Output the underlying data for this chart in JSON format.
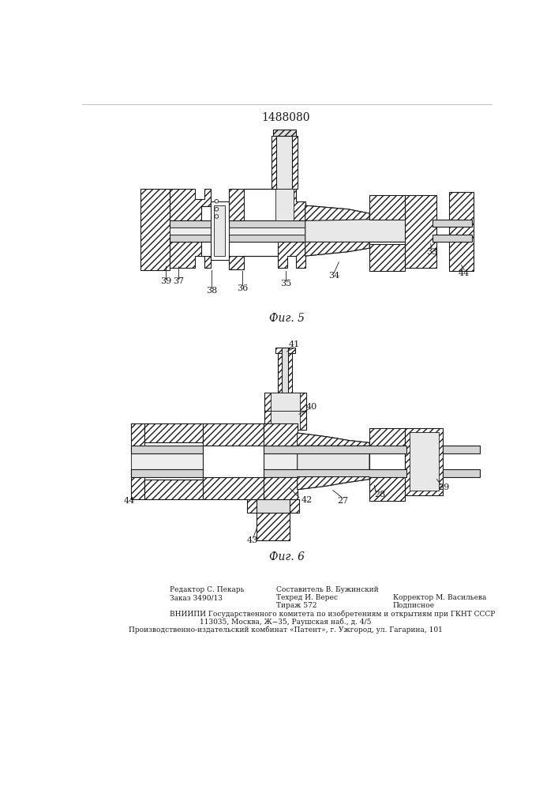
{
  "title": "1488080",
  "title_fontsize": 10,
  "fig5_label": "Фиг. 5",
  "fig6_label": "Фиг. 6",
  "bg_color": "#ffffff",
  "line_color": "#1a1a1a",
  "footer_col1": [
    "Редактор С. Пекарь",
    "Заказ 3490/13"
  ],
  "footer_col2": [
    "Составитель В. Бужинский",
    "Техред И. Верес",
    "Тираж 572"
  ],
  "footer_col3": [
    "Корректор М. Васильева",
    "Подписное"
  ],
  "footer_line1": "ВНИИПИ Государственного комитета по изобретениям и открытиям при ГКНТ СССР",
  "footer_line2": "113035, Москва, Ж−35, Раушская наб., д. 4/5",
  "footer_line3": "Производственно-издательский комбинат «Патент», г. Ужгород, ул. Гагарина, 101"
}
